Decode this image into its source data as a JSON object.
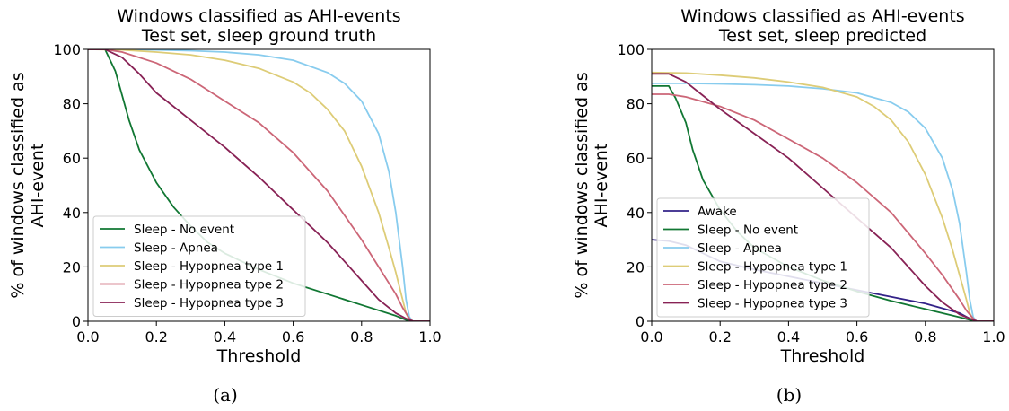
{
  "captions": [
    "(a)",
    "(b)"
  ],
  "chart_data": [
    {
      "type": "line",
      "title": "Windows classified as AHI-events\nTest set, sleep ground truth",
      "xlabel": "Threshold",
      "ylabel": "% of windows classified as\nAHI-event",
      "xlim": [
        0.0,
        1.0
      ],
      "ylim": [
        0,
        100
      ],
      "xticks": [
        "0.0",
        "0.2",
        "0.4",
        "0.6",
        "0.8",
        "1.0"
      ],
      "yticks": [
        "0",
        "20",
        "40",
        "60",
        "80",
        "100"
      ],
      "grid": false,
      "legend_position": "lower-left",
      "series": [
        {
          "name": "Sleep - No event",
          "color": "#117733",
          "x": [
            0.0,
            0.05,
            0.08,
            0.1,
            0.12,
            0.15,
            0.2,
            0.25,
            0.3,
            0.35,
            0.4,
            0.5,
            0.6,
            0.7,
            0.8,
            0.9,
            0.93,
            0.95,
            1.0
          ],
          "y": [
            100,
            100,
            92,
            83,
            74,
            63,
            51,
            42,
            35,
            29,
            25,
            19,
            14,
            10,
            6,
            2,
            0.5,
            0,
            0
          ]
        },
        {
          "name": "Sleep - Apnea",
          "color": "#88CCEE",
          "x": [
            0.0,
            0.1,
            0.2,
            0.3,
            0.4,
            0.5,
            0.6,
            0.7,
            0.75,
            0.8,
            0.85,
            0.88,
            0.9,
            0.92,
            0.93,
            0.94,
            0.95,
            1.0
          ],
          "y": [
            100,
            100,
            99.8,
            99.5,
            99,
            98,
            96,
            91.5,
            87.5,
            81,
            69,
            55,
            40,
            20,
            8,
            1.5,
            0,
            0
          ]
        },
        {
          "name": "Sleep - Hypopnea type 1",
          "color": "#DDCC77",
          "x": [
            0.0,
            0.1,
            0.2,
            0.3,
            0.4,
            0.5,
            0.6,
            0.65,
            0.7,
            0.75,
            0.8,
            0.85,
            0.88,
            0.9,
            0.92,
            0.93,
            0.94,
            0.95,
            1.0
          ],
          "y": [
            100,
            99.8,
            99,
            98,
            96,
            93,
            88,
            84,
            78,
            70,
            57,
            40,
            27,
            18,
            8,
            3,
            0.5,
            0,
            0
          ]
        },
        {
          "name": "Sleep - Hypopnea type 2",
          "color": "#CC6677",
          "x": [
            0.0,
            0.05,
            0.1,
            0.2,
            0.3,
            0.4,
            0.5,
            0.6,
            0.7,
            0.8,
            0.85,
            0.9,
            0.92,
            0.94,
            0.95,
            1.0
          ],
          "y": [
            100,
            100,
            99,
            95,
            89,
            81,
            73,
            62,
            48,
            30,
            20,
            10,
            5,
            1,
            0,
            0
          ]
        },
        {
          "name": "Sleep - Hypopnea type 3",
          "color": "#882255",
          "x": [
            0.0,
            0.05,
            0.1,
            0.15,
            0.2,
            0.3,
            0.4,
            0.5,
            0.6,
            0.7,
            0.75,
            0.8,
            0.85,
            0.9,
            0.93,
            0.95,
            1.0
          ],
          "y": [
            100,
            100,
            97,
            91,
            84,
            74,
            64,
            53,
            41,
            29,
            22,
            15,
            8,
            3,
            1,
            0,
            0
          ]
        }
      ]
    },
    {
      "type": "line",
      "title": "Windows classified as AHI-events\nTest set,  sleep predicted",
      "xlabel": "Threshold",
      "ylabel": "% of windows classified as\nAHI-event",
      "xlim": [
        0.0,
        1.0
      ],
      "ylim": [
        0,
        100
      ],
      "xticks": [
        "0.0",
        "0.2",
        "0.4",
        "0.6",
        "0.8",
        "1.0"
      ],
      "yticks": [
        "0",
        "20",
        "40",
        "60",
        "80",
        "100"
      ],
      "grid": false,
      "legend_position": "lower-left",
      "series": [
        {
          "name": "Awake",
          "color": "#332288",
          "x": [
            0.0,
            0.05,
            0.1,
            0.15,
            0.2,
            0.3,
            0.4,
            0.5,
            0.6,
            0.7,
            0.8,
            0.9,
            0.93,
            0.95,
            1.0
          ],
          "y": [
            30,
            29.5,
            28,
            25,
            22,
            19,
            16.5,
            14,
            11.5,
            9,
            6.5,
            3,
            1,
            0,
            0
          ]
        },
        {
          "name": "Sleep - No event",
          "color": "#117733",
          "x": [
            0.0,
            0.05,
            0.07,
            0.1,
            0.12,
            0.15,
            0.2,
            0.25,
            0.3,
            0.4,
            0.5,
            0.6,
            0.7,
            0.8,
            0.9,
            0.93,
            0.95,
            1.0
          ],
          "y": [
            86.5,
            86.5,
            82,
            73,
            63,
            52,
            41,
            33,
            27,
            20,
            15,
            11,
            7.5,
            4.5,
            1.5,
            0.5,
            0,
            0
          ]
        },
        {
          "name": "Sleep - Apnea",
          "color": "#88CCEE",
          "x": [
            0.0,
            0.1,
            0.2,
            0.3,
            0.4,
            0.5,
            0.6,
            0.7,
            0.75,
            0.8,
            0.85,
            0.88,
            0.9,
            0.92,
            0.93,
            0.94,
            0.95,
            1.0
          ],
          "y": [
            87.5,
            87.5,
            87.3,
            87,
            86.5,
            85.5,
            84,
            80.5,
            77,
            71,
            60,
            48,
            36,
            18,
            8,
            1.5,
            0,
            0
          ]
        },
        {
          "name": "Sleep - Hypopnea type 1",
          "color": "#DDCC77",
          "x": [
            0.0,
            0.1,
            0.2,
            0.3,
            0.4,
            0.5,
            0.6,
            0.65,
            0.7,
            0.75,
            0.8,
            0.85,
            0.88,
            0.9,
            0.92,
            0.93,
            0.94,
            0.95,
            1.0
          ],
          "y": [
            91.5,
            91.3,
            90.5,
            89.5,
            88,
            86,
            82.5,
            79,
            74,
            66,
            54,
            38,
            26,
            17,
            8,
            3,
            0.5,
            0,
            0
          ]
        },
        {
          "name": "Sleep - Hypopnea type 2",
          "color": "#CC6677",
          "x": [
            0.0,
            0.05,
            0.1,
            0.2,
            0.3,
            0.4,
            0.5,
            0.6,
            0.7,
            0.8,
            0.85,
            0.9,
            0.92,
            0.94,
            0.95,
            1.0
          ],
          "y": [
            83.5,
            83.5,
            82.5,
            79,
            74,
            67,
            60,
            51,
            40,
            25,
            17,
            8,
            4,
            1,
            0,
            0
          ]
        },
        {
          "name": "Sleep - Hypopnea type 3",
          "color": "#882255",
          "x": [
            0.0,
            0.05,
            0.1,
            0.15,
            0.2,
            0.3,
            0.4,
            0.5,
            0.6,
            0.7,
            0.75,
            0.8,
            0.85,
            0.9,
            0.93,
            0.95,
            1.0
          ],
          "y": [
            91,
            91,
            88,
            83,
            78,
            69,
            60,
            49,
            38,
            27,
            20,
            13,
            7,
            2.5,
            1,
            0,
            0
          ]
        }
      ]
    }
  ]
}
